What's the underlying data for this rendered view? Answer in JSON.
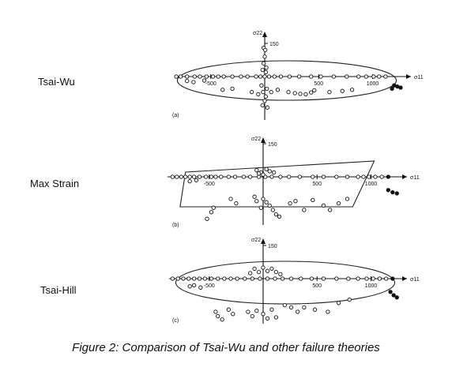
{
  "row_labels": [
    "Tsai-Wu",
    "Max Strain",
    "Tsai-Hill"
  ],
  "caption": "Figure 2: Comparison of Tsai-Wu and other failure theories",
  "chart_data": [
    {
      "type": "scatter",
      "panel_label": "(a)",
      "xlabel": "σ11",
      "ylabel": "σ22",
      "x_ticks": [
        -500,
        500,
        1000
      ],
      "y_ticks": [
        150
      ],
      "xlim": [
        -900,
        1300
      ],
      "ylim": [
        -200,
        200
      ],
      "envelope": "ellipse",
      "series": [
        {
          "values": []
        }
      ],
      "points": [
        [
          -820,
          0
        ],
        [
          -780,
          0
        ],
        [
          -720,
          0
        ],
        [
          -650,
          0
        ],
        [
          -600,
          0
        ],
        [
          -540,
          0
        ],
        [
          -480,
          0
        ],
        [
          -430,
          0
        ],
        [
          -380,
          0
        ],
        [
          -300,
          0
        ],
        [
          -220,
          0
        ],
        [
          -160,
          0
        ],
        [
          -80,
          0
        ],
        [
          -40,
          0
        ],
        [
          0,
          0
        ],
        [
          40,
          0
        ],
        [
          90,
          0
        ],
        [
          150,
          0
        ],
        [
          230,
          0
        ],
        [
          320,
          0
        ],
        [
          430,
          0
        ],
        [
          520,
          0
        ],
        [
          640,
          0
        ],
        [
          760,
          0
        ],
        [
          870,
          0
        ],
        [
          940,
          0
        ],
        [
          1010,
          0
        ],
        [
          1060,
          0
        ],
        [
          1120,
          0
        ],
        [
          -10,
          130
        ],
        [
          5,
          120
        ],
        [
          0,
          90
        ],
        [
          -10,
          60
        ],
        [
          15,
          40
        ],
        [
          -20,
          30
        ],
        [
          10,
          20
        ],
        [
          -30,
          -40
        ],
        [
          20,
          -55
        ],
        [
          -15,
          -70
        ],
        [
          10,
          -90
        ],
        [
          0,
          -110
        ],
        [
          -20,
          -130
        ],
        [
          25,
          -140
        ],
        [
          -720,
          -20
        ],
        [
          -660,
          -25
        ],
        [
          -560,
          -18
        ],
        [
          -390,
          -60
        ],
        [
          -300,
          -55
        ],
        [
          -120,
          -70
        ],
        [
          -60,
          -80
        ],
        [
          60,
          -70
        ],
        [
          120,
          -60
        ],
        [
          220,
          -70
        ],
        [
          280,
          -75
        ],
        [
          330,
          -78
        ],
        [
          380,
          -80
        ],
        [
          430,
          -72
        ],
        [
          460,
          -62
        ],
        [
          600,
          -70
        ],
        [
          720,
          -65
        ],
        [
          810,
          -60
        ],
        [
          1200,
          -40
        ],
        [
          1230,
          -45
        ],
        [
          1260,
          -50
        ],
        [
          1180,
          -55
        ]
      ]
    },
    {
      "type": "scatter",
      "panel_label": "(b)",
      "xlabel": "σ11",
      "ylabel": "σ22",
      "x_ticks": [
        -500,
        500,
        1000
      ],
      "y_ticks": [
        150
      ],
      "xlim": [
        -900,
        1300
      ],
      "ylim": [
        -200,
        200
      ],
      "envelope": "parallelogram",
      "series": [
        {
          "values": []
        }
      ],
      "points": [
        [
          -840,
          0
        ],
        [
          -800,
          0
        ],
        [
          -760,
          0
        ],
        [
          -720,
          0
        ],
        [
          -680,
          0
        ],
        [
          -640,
          0
        ],
        [
          -590,
          0
        ],
        [
          -530,
          0
        ],
        [
          -480,
          0
        ],
        [
          -440,
          0
        ],
        [
          -390,
          0
        ],
        [
          -320,
          0
        ],
        [
          -260,
          0
        ],
        [
          -180,
          0
        ],
        [
          -120,
          0
        ],
        [
          -40,
          0
        ],
        [
          20,
          0
        ],
        [
          80,
          0
        ],
        [
          160,
          0
        ],
        [
          240,
          0
        ],
        [
          340,
          0
        ],
        [
          460,
          0
        ],
        [
          560,
          0
        ],
        [
          680,
          0
        ],
        [
          780,
          0
        ],
        [
          880,
          0
        ],
        [
          930,
          0
        ],
        [
          980,
          0
        ],
        [
          1040,
          0
        ],
        [
          1100,
          0
        ],
        [
          1160,
          0
        ],
        [
          -680,
          -20
        ],
        [
          -620,
          -15
        ],
        [
          -60,
          30
        ],
        [
          -20,
          20
        ],
        [
          30,
          35
        ],
        [
          60,
          25
        ],
        [
          100,
          20
        ],
        [
          0,
          10
        ],
        [
          -40,
          15
        ],
        [
          -80,
          -90
        ],
        [
          -60,
          -110
        ],
        [
          -20,
          -140
        ],
        [
          0,
          -100
        ],
        [
          30,
          -115
        ],
        [
          60,
          -130
        ],
        [
          90,
          -150
        ],
        [
          120,
          -170
        ],
        [
          150,
          -180
        ],
        [
          -460,
          -140
        ],
        [
          -480,
          -160
        ],
        [
          -520,
          -190
        ],
        [
          -300,
          -100
        ],
        [
          -250,
          -120
        ],
        [
          250,
          -120
        ],
        [
          300,
          -110
        ],
        [
          380,
          -150
        ],
        [
          460,
          -105
        ],
        [
          560,
          -130
        ],
        [
          620,
          -150
        ],
        [
          700,
          -120
        ],
        [
          780,
          -100
        ],
        [
          1160,
          -60
        ],
        [
          1200,
          -70
        ],
        [
          1240,
          -75
        ]
      ]
    },
    {
      "type": "scatter",
      "panel_label": "(c)",
      "xlabel": "σ11",
      "ylabel": "σ22",
      "x_ticks": [
        -500,
        500,
        1000
      ],
      "y_ticks": [
        150
      ],
      "xlim": [
        -900,
        1300
      ],
      "ylim": [
        -200,
        200
      ],
      "envelope": "ellipse",
      "series": [
        {
          "values": []
        }
      ],
      "points": [
        [
          -840,
          0
        ],
        [
          -790,
          0
        ],
        [
          -740,
          0
        ],
        [
          -690,
          0
        ],
        [
          -640,
          0
        ],
        [
          -590,
          0
        ],
        [
          -540,
          0
        ],
        [
          -480,
          0
        ],
        [
          -420,
          0
        ],
        [
          -360,
          0
        ],
        [
          -300,
          0
        ],
        [
          -240,
          0
        ],
        [
          -170,
          0
        ],
        [
          -100,
          0
        ],
        [
          -30,
          0
        ],
        [
          40,
          0
        ],
        [
          110,
          0
        ],
        [
          180,
          0
        ],
        [
          260,
          0
        ],
        [
          350,
          0
        ],
        [
          450,
          0
        ],
        [
          560,
          0
        ],
        [
          680,
          0
        ],
        [
          790,
          0
        ],
        [
          880,
          0
        ],
        [
          960,
          0
        ],
        [
          1020,
          0
        ],
        [
          1080,
          0
        ],
        [
          1140,
          0
        ],
        [
          1200,
          0
        ],
        [
          -680,
          -35
        ],
        [
          -640,
          -30
        ],
        [
          -580,
          -40
        ],
        [
          -80,
          45
        ],
        [
          -40,
          30
        ],
        [
          0,
          50
        ],
        [
          40,
          35
        ],
        [
          80,
          45
        ],
        [
          120,
          30
        ],
        [
          -120,
          25
        ],
        [
          160,
          20
        ],
        [
          -440,
          -150
        ],
        [
          -420,
          -170
        ],
        [
          -380,
          -185
        ],
        [
          -320,
          -140
        ],
        [
          -280,
          -160
        ],
        [
          -140,
          -150
        ],
        [
          -100,
          -170
        ],
        [
          -60,
          -145
        ],
        [
          0,
          -160
        ],
        [
          40,
          -180
        ],
        [
          80,
          -140
        ],
        [
          120,
          -175
        ],
        [
          200,
          -120
        ],
        [
          260,
          -130
        ],
        [
          320,
          -150
        ],
        [
          380,
          -130
        ],
        [
          480,
          -140
        ],
        [
          600,
          -150
        ],
        [
          700,
          -110
        ],
        [
          800,
          -95
        ],
        [
          1180,
          -60
        ],
        [
          1210,
          -75
        ],
        [
          1240,
          -85
        ]
      ]
    }
  ]
}
